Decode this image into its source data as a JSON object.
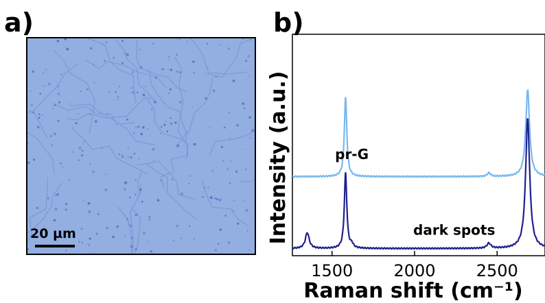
{
  "panels": {
    "a": {
      "label": "a)",
      "scale_bar": "20 µm"
    },
    "b": {
      "label": "b)"
    }
  },
  "colors": {
    "micrograph_bg": "#93aee0",
    "pr_g": "#78b8ee",
    "dark_spots": "#1f1f8f"
  },
  "chart_data": {
    "type": "line",
    "title": "",
    "xlabel": "Raman shift (cm⁻¹)",
    "ylabel": "Intensity (a.u.)",
    "xlim": [
      1260,
      2790
    ],
    "x_ticks": [
      1500,
      2000,
      2500
    ],
    "y_ticks": "none",
    "grid": false,
    "series": [
      {
        "name": "pr-G",
        "color": "#78b8ee",
        "offset": 1.0,
        "baseline": 0,
        "peaks": [
          {
            "x": 1582,
            "height": 1.1,
            "width": 9
          },
          {
            "x": 2450,
            "height": 0.05,
            "width": 12
          },
          {
            "x": 2685,
            "height": 1.2,
            "width": 14
          }
        ]
      },
      {
        "name": "dark spots",
        "color": "#1f1f8f",
        "offset": 0,
        "baseline": 0,
        "peaks": [
          {
            "x": 1350,
            "height": 0.22,
            "width": 14
          },
          {
            "x": 1582,
            "height": 1.05,
            "width": 9
          },
          {
            "x": 1620,
            "height": 0.05,
            "width": 10
          },
          {
            "x": 2450,
            "height": 0.07,
            "width": 14
          },
          {
            "x": 2685,
            "height": 1.8,
            "width": 15
          }
        ]
      }
    ]
  }
}
